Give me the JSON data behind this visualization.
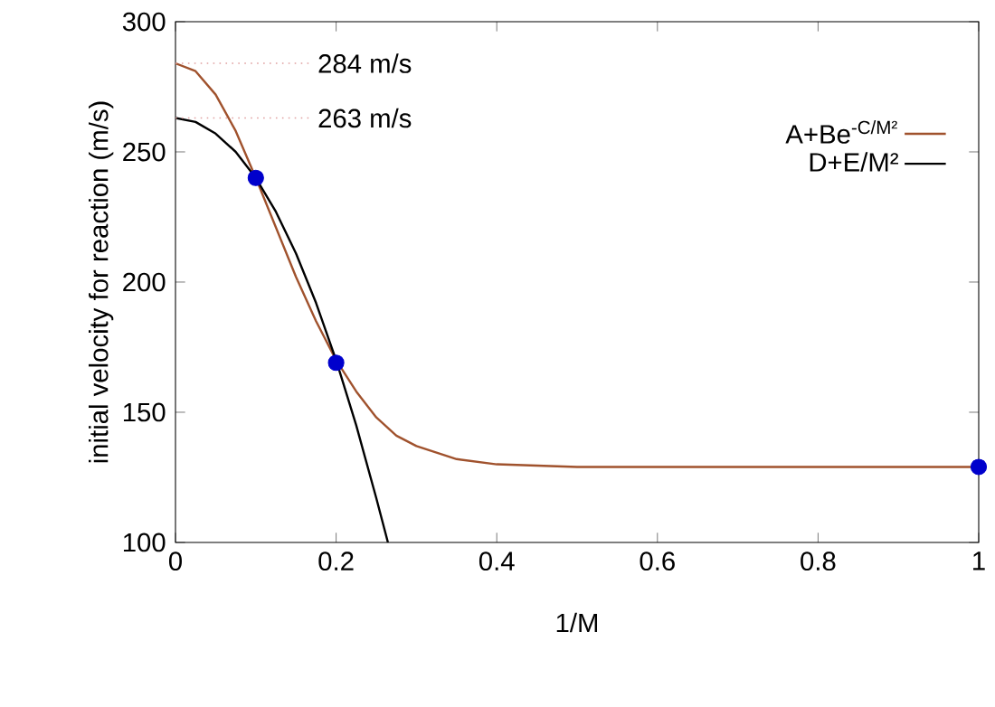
{
  "chart_data": {
    "type": "line",
    "xlabel": "1/M",
    "ylabel": "initial velocity for reaction (m/s)",
    "xlim": [
      0,
      1
    ],
    "ylim": [
      100,
      300
    ],
    "xticks": [
      0,
      0.2,
      0.4,
      0.6,
      0.8,
      1
    ],
    "yticks": [
      100,
      150,
      200,
      250,
      300
    ],
    "legend": "top right",
    "series": [
      {
        "name": "A+Be$^{-C/M²}$",
        "color": "#a0522d",
        "x": [
          0,
          0.025,
          0.05,
          0.075,
          0.1,
          0.125,
          0.15,
          0.175,
          0.2,
          0.225,
          0.25,
          0.275,
          0.3,
          0.35,
          0.4,
          0.5,
          0.6,
          0.8,
          1
        ],
        "values": [
          284,
          281,
          272,
          258,
          240,
          221,
          202,
          185,
          170,
          158,
          148,
          141,
          137,
          132,
          130,
          129,
          129,
          129,
          129
        ]
      },
      {
        "name": "D+E/M²",
        "color": "#000000",
        "x": [
          0,
          0.025,
          0.05,
          0.075,
          0.1,
          0.125,
          0.15,
          0.175,
          0.2,
          0.225,
          0.25,
          0.2645
        ],
        "values": [
          263,
          261.5,
          257,
          250,
          240,
          227,
          211,
          192,
          170,
          145,
          117,
          100
        ]
      },
      {
        "type": "scatter",
        "color": "#0000cc",
        "marker": "circle",
        "x": [
          0.1,
          0.2,
          1
        ],
        "values": [
          240,
          169,
          129
        ]
      }
    ],
    "ref_lines": [
      {
        "axis": "y",
        "value": 284,
        "label": "284 m/s",
        "color": "#e0a0a0",
        "line_style": "dotted"
      },
      {
        "axis": "y",
        "value": 263,
        "label": "263 m/s",
        "color": "#e0a0a0",
        "line_style": "dotted"
      }
    ]
  }
}
